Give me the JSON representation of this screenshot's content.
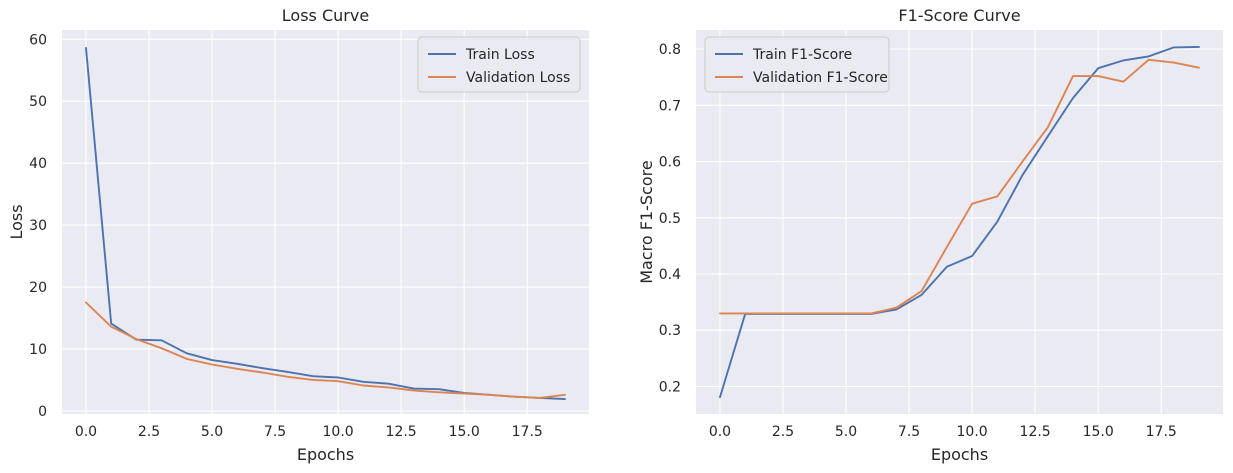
{
  "colors": {
    "train": "#4c72b0",
    "validation": "#dd8452"
  },
  "chart_data": [
    {
      "type": "line",
      "title": "Loss Curve",
      "xlabel": "Epochs",
      "ylabel": "Loss",
      "xlim": [
        -0.95,
        19.95
      ],
      "ylim": [
        -0.5,
        61.5
      ],
      "xticks": [
        0.0,
        2.5,
        5.0,
        7.5,
        10.0,
        12.5,
        15.0,
        17.5
      ],
      "xtick_labels": [
        "0.0",
        "2.5",
        "5.0",
        "7.5",
        "10.0",
        "12.5",
        "15.0",
        "17.5"
      ],
      "yticks": [
        0,
        10,
        20,
        30,
        40,
        50,
        60
      ],
      "ytick_labels": [
        "0",
        "10",
        "20",
        "30",
        "40",
        "50",
        "60"
      ],
      "legend_position": "top-right",
      "grid": true,
      "x": [
        0,
        1,
        2,
        3,
        4,
        5,
        6,
        7,
        8,
        9,
        10,
        11,
        12,
        13,
        14,
        15,
        16,
        17,
        18,
        19
      ],
      "series": [
        {
          "name": "Train Loss",
          "color": "#4c72b0",
          "values": [
            58.6,
            14.1,
            11.5,
            11.4,
            9.3,
            8.2,
            7.6,
            6.9,
            6.3,
            5.6,
            5.4,
            4.7,
            4.4,
            3.6,
            3.5,
            2.9,
            2.6,
            2.3,
            2.1,
            1.9
          ]
        },
        {
          "name": "Validation Loss",
          "color": "#dd8452",
          "values": [
            17.5,
            13.6,
            11.6,
            10.1,
            8.4,
            7.5,
            6.8,
            6.2,
            5.5,
            5.0,
            4.8,
            4.1,
            3.8,
            3.3,
            3.0,
            2.8,
            2.6,
            2.3,
            2.1,
            2.6
          ]
        }
      ]
    },
    {
      "type": "line",
      "title": "F1-Score Curve",
      "xlabel": "Epochs",
      "ylabel": "Macro F1-Score",
      "xlim": [
        -0.95,
        19.95
      ],
      "ylim": [
        0.151,
        0.834
      ],
      "xticks": [
        0.0,
        2.5,
        5.0,
        7.5,
        10.0,
        12.5,
        15.0,
        17.5
      ],
      "xtick_labels": [
        "0.0",
        "2.5",
        "5.0",
        "7.5",
        "10.0",
        "12.5",
        "15.0",
        "17.5"
      ],
      "yticks": [
        0.2,
        0.3,
        0.4,
        0.5,
        0.6,
        0.7,
        0.8
      ],
      "ytick_labels": [
        "0.2",
        "0.3",
        "0.4",
        "0.5",
        "0.6",
        "0.7",
        "0.8"
      ],
      "legend_position": "top-left",
      "grid": true,
      "x": [
        0,
        1,
        2,
        3,
        4,
        5,
        6,
        7,
        8,
        9,
        10,
        11,
        12,
        13,
        14,
        15,
        16,
        17,
        18,
        19
      ],
      "series": [
        {
          "name": "Train F1-Score",
          "color": "#4c72b0",
          "values": [
            0.181,
            0.329,
            0.329,
            0.329,
            0.329,
            0.329,
            0.329,
            0.337,
            0.363,
            0.413,
            0.432,
            0.493,
            0.576,
            0.645,
            0.713,
            0.766,
            0.78,
            0.787,
            0.803,
            0.804
          ]
        },
        {
          "name": "Validation F1-Score",
          "color": "#dd8452",
          "values": [
            0.33,
            0.33,
            0.33,
            0.33,
            0.33,
            0.33,
            0.33,
            0.34,
            0.37,
            0.448,
            0.525,
            0.538,
            0.6,
            0.661,
            0.752,
            0.752,
            0.742,
            0.781,
            0.776,
            0.767
          ]
        }
      ]
    }
  ]
}
